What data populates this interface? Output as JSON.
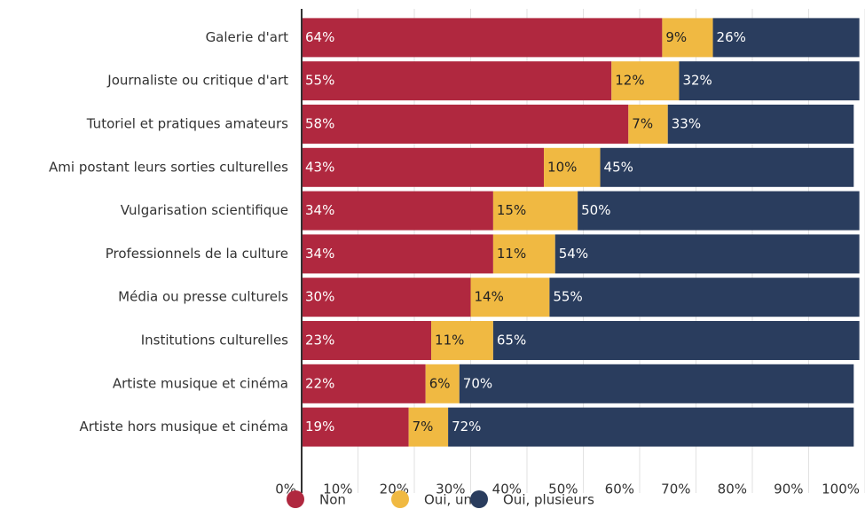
{
  "chart_data": {
    "type": "stacked-bar-horizontal",
    "categories": [
      "Galerie d'art",
      "Journaliste ou critique d'art",
      "Tutoriel et pratiques amateurs",
      "Ami postant leurs sorties culturelles",
      "Vulgarisation scientifique",
      "Professionnels de la culture",
      "Média ou presse culturels",
      "Institutions culturelles",
      "Artiste musique et cinéma",
      "Artiste hors musique et cinéma"
    ],
    "series": [
      {
        "name": "Non",
        "color": "#b0283f",
        "values": [
          64,
          55,
          58,
          43,
          34,
          34,
          30,
          23,
          22,
          19
        ],
        "value_labels": [
          "64%",
          "55%",
          "58%",
          "43%",
          "34%",
          "34%",
          "30%",
          "23%",
          "22%",
          "19%"
        ]
      },
      {
        "name": "Oui, un",
        "color": "#f0b942",
        "values": [
          9,
          12,
          7,
          10,
          15,
          11,
          14,
          11,
          6,
          7
        ],
        "value_labels": [
          "9%",
          "12%",
          "7%",
          "10%",
          "15%",
          "11%",
          "14%",
          "11%",
          "6%",
          "7%"
        ]
      },
      {
        "name": "Oui, plusieurs",
        "color": "#2a3d5e",
        "values": [
          26,
          32,
          33,
          45,
          50,
          54,
          55,
          65,
          70,
          72
        ],
        "value_labels": [
          "26%",
          "32%",
          "33%",
          "45%",
          "50%",
          "54%",
          "55%",
          "65%",
          "70%",
          "72%"
        ]
      }
    ],
    "xlim": [
      0,
      100
    ],
    "xticks": [
      {
        "value": 0,
        "label": "0%"
      },
      {
        "value": 10,
        "label": "10%"
      },
      {
        "value": 20,
        "label": "20%"
      },
      {
        "value": 30,
        "label": "30%"
      },
      {
        "value": 40,
        "label": "40%"
      },
      {
        "value": 50,
        "label": "50%"
      },
      {
        "value": 60,
        "label": "60%"
      },
      {
        "value": 70,
        "label": "70%"
      },
      {
        "value": 80,
        "label": "80%"
      },
      {
        "value": 90,
        "label": "90%"
      },
      {
        "value": 100,
        "label": "100%"
      }
    ],
    "grid": true,
    "legend": "bottom"
  }
}
